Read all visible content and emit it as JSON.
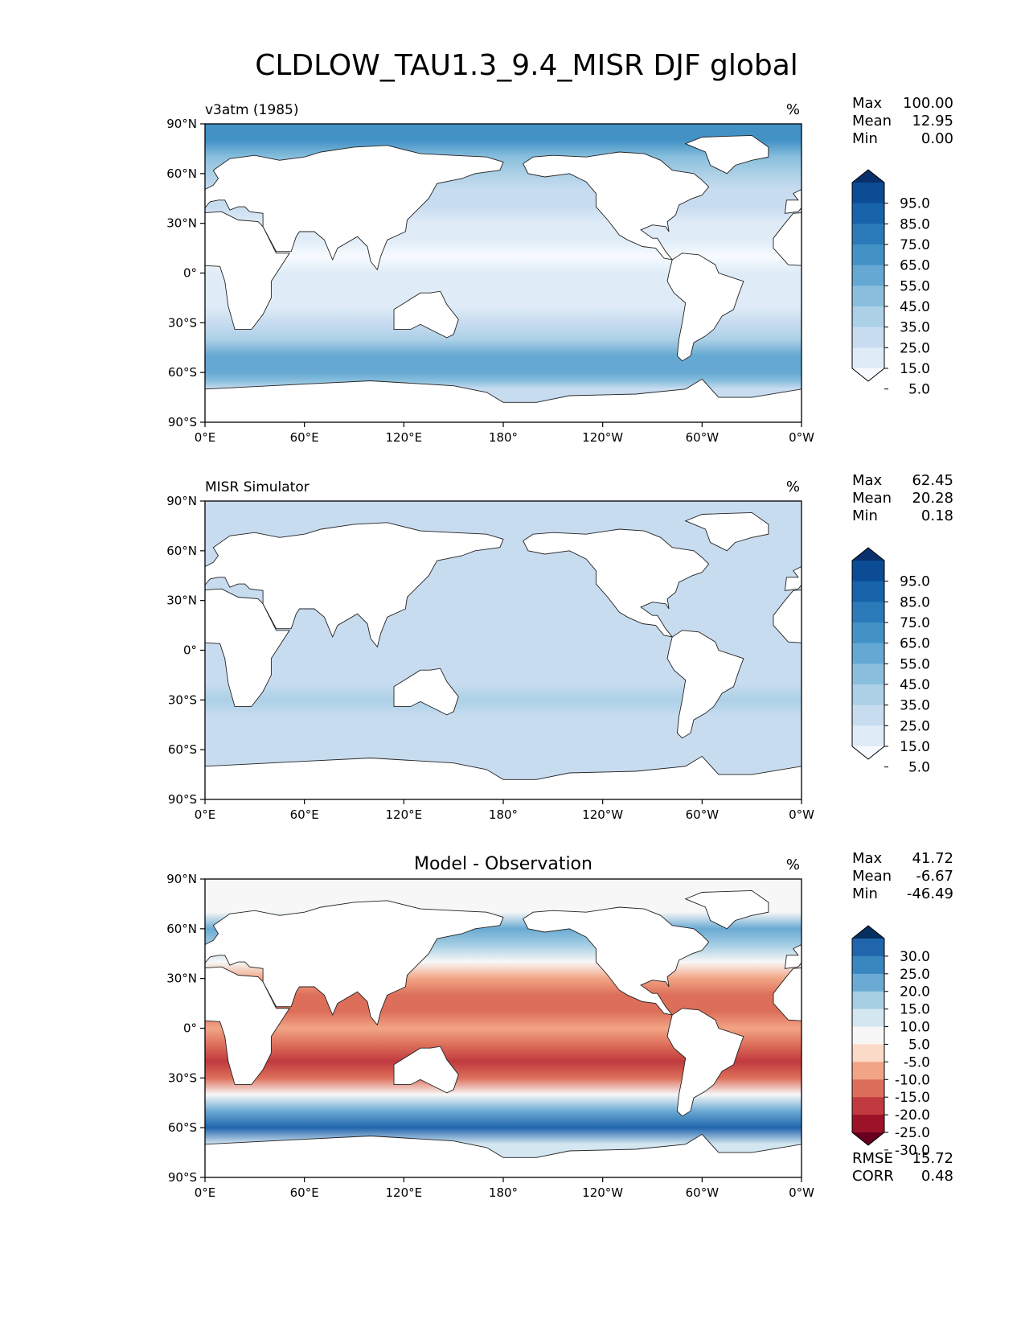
{
  "figure": {
    "title": "CLDLOW_TAU1.3_9.4_MISR DJF global"
  },
  "axes": {
    "lat_ticks": [
      "90°N",
      "60°N",
      "30°N",
      "0°",
      "30°S",
      "60°S",
      "90°S"
    ],
    "lon_ticks": [
      "0°E",
      "60°E",
      "120°E",
      "180°",
      "120°W",
      "60°W",
      "0°W"
    ]
  },
  "panels": [
    {
      "label": "v3atm (1985)",
      "center_title": "",
      "units": "%",
      "stats": [
        {
          "name": "Max",
          "value": "100.00"
        },
        {
          "name": "Mean",
          "value": "12.95"
        },
        {
          "name": "Min",
          "value": "0.00"
        }
      ],
      "colorbar": {
        "labels": [
          "95.0",
          "85.0",
          "75.0",
          "65.0",
          "55.0",
          "45.0",
          "35.0",
          "25.0",
          "15.0",
          "5.0"
        ],
        "colors": [
          "#08306b",
          "#0b4c94",
          "#1764ab",
          "#2b7bba",
          "#4292c6",
          "#64a8d3",
          "#89bfdd",
          "#acd0e6",
          "#c8dcf0",
          "#dfecf7",
          "#f7fbff"
        ]
      }
    },
    {
      "label": "MISR Simulator",
      "center_title": "",
      "units": "%",
      "stats": [
        {
          "name": "Max",
          "value": "62.45"
        },
        {
          "name": "Mean",
          "value": "20.28"
        },
        {
          "name": "Min",
          "value": "0.18"
        }
      ],
      "colorbar": {
        "labels": [
          "95.0",
          "85.0",
          "75.0",
          "65.0",
          "55.0",
          "45.0",
          "35.0",
          "25.0",
          "15.0",
          "5.0"
        ],
        "colors": [
          "#08306b",
          "#0b4c94",
          "#1764ab",
          "#2b7bba",
          "#4292c6",
          "#64a8d3",
          "#89bfdd",
          "#acd0e6",
          "#c8dcf0",
          "#dfecf7",
          "#f7fbff"
        ]
      }
    },
    {
      "label": "",
      "center_title": "Model - Observation",
      "units": "%",
      "stats": [
        {
          "name": "Max",
          "value": "41.72"
        },
        {
          "name": "Mean",
          "value": "-6.67"
        },
        {
          "name": "Min",
          "value": "-46.49"
        }
      ],
      "metrics": [
        {
          "name": "RMSE",
          "value": "15.72"
        },
        {
          "name": "CORR",
          "value": "0.48"
        }
      ],
      "colorbar": {
        "labels": [
          "30.0",
          "25.0",
          "20.0",
          "15.0",
          "10.0",
          "5.0",
          "-5.0",
          "-10.0",
          "-15.0",
          "-20.0",
          "-25.0",
          "-30.0"
        ],
        "colors": [
          "#053061",
          "#2166ac",
          "#3a87c0",
          "#6aaad3",
          "#a6cfe4",
          "#d4e6f0",
          "#f7f7f7",
          "#fbdac8",
          "#f2a585",
          "#dd6f5a",
          "#c03a3f",
          "#9c1228",
          "#67001f"
        ]
      }
    }
  ],
  "chart_data": [
    {
      "type": "heatmap",
      "title": "v3atm (1985)",
      "units": "%",
      "x_ticks": [
        "0°E",
        "60°E",
        "120°E",
        "180°",
        "120°W",
        "60°W",
        "0°W"
      ],
      "y_ticks": [
        "90°N",
        "60°N",
        "30°N",
        "0°",
        "30°S",
        "60°S",
        "90°S"
      ],
      "xlim": [
        0,
        360
      ],
      "ylim": [
        -90,
        90
      ],
      "levels": [
        5,
        15,
        25,
        35,
        45,
        55,
        65,
        75,
        85,
        95
      ],
      "stats": {
        "max": 100.0,
        "mean": 12.95,
        "min": 0.0
      },
      "zonal_mean_profile": {
        "lat": [
          80,
          70,
          60,
          50,
          40,
          30,
          20,
          10,
          0,
          -10,
          -20,
          -30,
          -40,
          -50,
          -55,
          -60,
          -65,
          -70
        ],
        "value": [
          60,
          40,
          30,
          25,
          20,
          12,
          6,
          5,
          6,
          8,
          15,
          22,
          32,
          48,
          55,
          55,
          45,
          20
        ]
      }
    },
    {
      "type": "heatmap",
      "title": "MISR Simulator",
      "units": "%",
      "x_ticks": [
        "0°E",
        "60°E",
        "120°E",
        "180°",
        "120°W",
        "60°W",
        "0°W"
      ],
      "y_ticks": [
        "90°N",
        "60°N",
        "30°N",
        "0°",
        "30°S",
        "60°S",
        "90°S"
      ],
      "xlim": [
        0,
        360
      ],
      "ylim": [
        -90,
        90
      ],
      "levels": [
        5,
        15,
        25,
        35,
        45,
        55,
        65,
        75,
        85,
        95
      ],
      "stats": {
        "max": 62.45,
        "mean": 20.28,
        "min": 0.18
      },
      "zonal_mean_profile": {
        "lat": [
          70,
          60,
          50,
          40,
          30,
          20,
          10,
          0,
          -10,
          -20,
          -30,
          -40,
          -50,
          -60,
          -70
        ],
        "value": [
          18,
          22,
          24,
          22,
          20,
          20,
          18,
          18,
          20,
          24,
          26,
          24,
          22,
          20,
          18
        ]
      }
    },
    {
      "type": "heatmap",
      "title": "Model - Observation",
      "units": "%",
      "x_ticks": [
        "0°E",
        "60°E",
        "120°E",
        "180°",
        "120°W",
        "60°W",
        "0°W"
      ],
      "y_ticks": [
        "90°N",
        "60°N",
        "30°N",
        "0°",
        "30°S",
        "60°S",
        "90°S"
      ],
      "xlim": [
        0,
        360
      ],
      "ylim": [
        -90,
        90
      ],
      "levels": [
        -30,
        -25,
        -20,
        -15,
        -10,
        -5,
        5,
        10,
        15,
        20,
        25,
        30
      ],
      "stats": {
        "max": 41.72,
        "mean": -6.67,
        "min": -46.49,
        "rmse": 15.72,
        "corr": 0.48
      },
      "zonal_mean_profile": {
        "lat": [
          70,
          60,
          50,
          40,
          30,
          20,
          10,
          0,
          -10,
          -20,
          -30,
          -40,
          -50,
          -60,
          -70
        ],
        "value": [
          5,
          20,
          15,
          0,
          -10,
          -15,
          -15,
          -10,
          -15,
          -20,
          -15,
          0,
          20,
          30,
          10
        ]
      }
    }
  ]
}
